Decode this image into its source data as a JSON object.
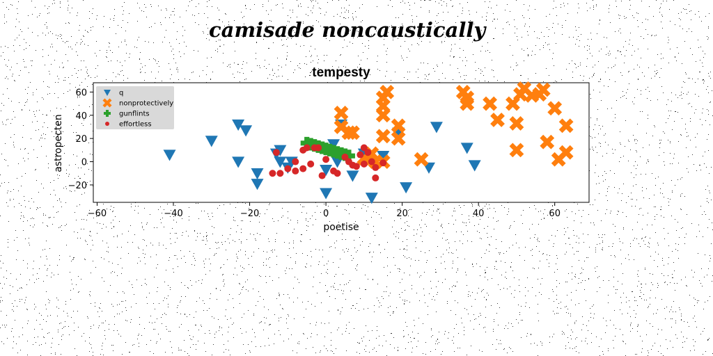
{
  "figure": {
    "suptitle": "camisade noncaustically"
  },
  "chart_data": {
    "type": "scatter",
    "title": "tempesty",
    "xlabel": "poetise",
    "ylabel": "astropecten",
    "xlim": [
      -61,
      69
    ],
    "ylim": [
      -35,
      68
    ],
    "xticks": [
      -60,
      -40,
      -20,
      0,
      20,
      40,
      60
    ],
    "yticks": [
      -20,
      0,
      20,
      40,
      60
    ],
    "grid": false,
    "legend_position": "upper-left",
    "series": [
      {
        "name": "q",
        "marker": "triangle-down",
        "color": "#1f77b4",
        "points": [
          [
            -41,
            6
          ],
          [
            -30,
            18
          ],
          [
            -23,
            32
          ],
          [
            -21,
            27
          ],
          [
            -23,
            0
          ],
          [
            -18,
            -10
          ],
          [
            -18,
            -19
          ],
          [
            -13,
            7
          ],
          [
            -12,
            10
          ],
          [
            -12,
            0
          ],
          [
            -10,
            -5
          ],
          [
            -9,
            0
          ],
          [
            0,
            -7
          ],
          [
            0,
            -27
          ],
          [
            2,
            15
          ],
          [
            3,
            0
          ],
          [
            4,
            32
          ],
          [
            7,
            -12
          ],
          [
            10,
            7
          ],
          [
            12,
            -31
          ],
          [
            15,
            5
          ],
          [
            19,
            25
          ],
          [
            21,
            -22
          ],
          [
            27,
            -5
          ],
          [
            29,
            30
          ],
          [
            37,
            12
          ],
          [
            39,
            -3
          ]
        ]
      },
      {
        "name": "nonprotectively",
        "marker": "x-thick",
        "color": "#ff7f0e",
        "points": [
          [
            4,
            42
          ],
          [
            4,
            30
          ],
          [
            6,
            25
          ],
          [
            7,
            25
          ],
          [
            10,
            3
          ],
          [
            12,
            7
          ],
          [
            13,
            0
          ],
          [
            15,
            0
          ],
          [
            15,
            55
          ],
          [
            15,
            48
          ],
          [
            15,
            40
          ],
          [
            15,
            22
          ],
          [
            16,
            60
          ],
          [
            19,
            31
          ],
          [
            19,
            20
          ],
          [
            25,
            2
          ],
          [
            36,
            60
          ],
          [
            37,
            55
          ],
          [
            37,
            50
          ],
          [
            43,
            50
          ],
          [
            45,
            36
          ],
          [
            49,
            50
          ],
          [
            50,
            33
          ],
          [
            50,
            10
          ],
          [
            51,
            58
          ],
          [
            52,
            63
          ],
          [
            54,
            57
          ],
          [
            56,
            58
          ],
          [
            57,
            62
          ],
          [
            58,
            17
          ],
          [
            60,
            46
          ],
          [
            61,
            2
          ],
          [
            63,
            31
          ],
          [
            63,
            8
          ]
        ]
      },
      {
        "name": "gunflints",
        "marker": "plus-thick",
        "color": "#2ca02c",
        "points": [
          [
            -5,
            16
          ],
          [
            -4,
            15
          ],
          [
            -3,
            14
          ],
          [
            -2,
            13
          ],
          [
            -1,
            12
          ],
          [
            0,
            11
          ],
          [
            1,
            10
          ],
          [
            2,
            9
          ],
          [
            3,
            8
          ],
          [
            4,
            7
          ],
          [
            5,
            6
          ],
          [
            6,
            5
          ]
        ]
      },
      {
        "name": "effortless",
        "marker": "circle",
        "color": "#d62728",
        "points": [
          [
            -14,
            -10
          ],
          [
            -12,
            -10
          ],
          [
            -13,
            8
          ],
          [
            -10,
            -6
          ],
          [
            -8,
            -8
          ],
          [
            -8,
            0
          ],
          [
            -6,
            -6
          ],
          [
            -4,
            -2
          ],
          [
            -6,
            10
          ],
          [
            -5,
            12
          ],
          [
            -3,
            12
          ],
          [
            -2,
            12
          ],
          [
            0,
            2
          ],
          [
            -1,
            -12
          ],
          [
            2,
            -8
          ],
          [
            3,
            -10
          ],
          [
            5,
            4
          ],
          [
            6,
            0
          ],
          [
            7,
            -3
          ],
          [
            8,
            -4
          ],
          [
            9,
            6
          ],
          [
            10,
            -2
          ],
          [
            10,
            12
          ],
          [
            11,
            8
          ],
          [
            12,
            0
          ],
          [
            13,
            -5
          ],
          [
            13,
            -14
          ],
          [
            15,
            -1
          ]
        ]
      }
    ]
  }
}
